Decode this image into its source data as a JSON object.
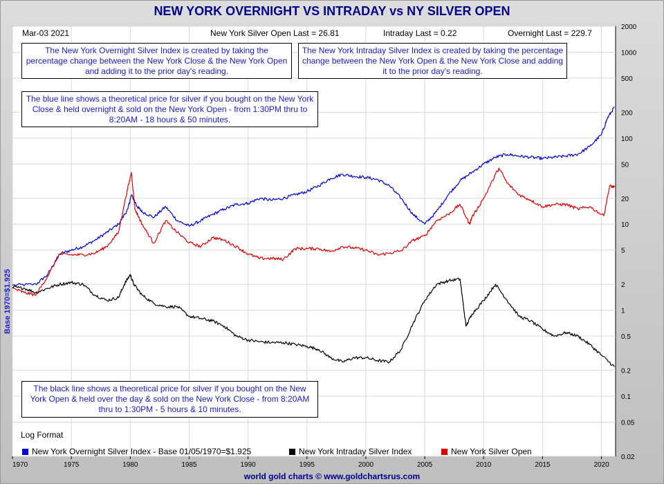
{
  "title": "NEW YORK OVERNIGHT VS INTRADAY vs NY SILVER OPEN",
  "header": {
    "date": "Mar-03  2021",
    "open_last": "New York Silver Open Last = 26.81",
    "intraday_last": "Intraday Last = 0.22",
    "overnight_last": "Overnight Last = 229.7"
  },
  "notes": {
    "overnight": "The New York Overnight Silver Index is created by taking the percentage change between the New York Close & the New York Open and adding it to the prior day's reading.",
    "intraday": "The New York Intraday Silver Index is created by taking the percentage change between the New York Open & the New York Close and adding it to the prior day's reading.",
    "blue_line": "The blue line shows a theoretical price for silver if you bought on the New York Close & held overnight & sold on the New York Open - from 1:30PM thru to 8:20AM - 18 hours & 50 minutes.",
    "black_line": "The black line shows a theoretical price for silver if you bought on the New York Open & held over the day & sold on the New York Close - from 8:20AM thru to 1:30PM - 5 hours & 10 minutes."
  },
  "log_format": "Log Format",
  "ylabel_left": "Base 1970=$1.925",
  "footer": "world gold charts © www.goldchartsrus.com",
  "legend": [
    {
      "label": "New York Overnight Silver Index - Base 01/05/1970=$1.925",
      "color": "#0000dd"
    },
    {
      "label": "New York Intraday Silver Index",
      "color": "#000000"
    },
    {
      "label": "New York Silver Open",
      "color": "#dd0000"
    }
  ],
  "chart_data": {
    "type": "line",
    "xlim": [
      1970,
      2021.2
    ],
    "ylim": [
      0.02,
      2000
    ],
    "yscale": "log",
    "grid": true,
    "legend_position": "bottom",
    "x_ticks": [
      1970,
      1975,
      1980,
      1985,
      1990,
      1995,
      2000,
      2005,
      2010,
      2015,
      2020
    ],
    "y_ticks": [
      {
        "v": 2000,
        "label": "2000"
      },
      {
        "v": 1000,
        "label": "1000"
      },
      {
        "v": 500,
        "label": "500"
      },
      {
        "v": 200,
        "label": "200"
      },
      {
        "v": 100,
        "label": "100"
      },
      {
        "v": 50,
        "label": "50"
      },
      {
        "v": 20,
        "label": "20"
      },
      {
        "v": 10,
        "label": "10"
      },
      {
        "v": 5,
        "label": "5"
      },
      {
        "v": 2,
        "label": "2"
      },
      {
        "v": 1,
        "label": "1"
      },
      {
        "v": 0.5,
        "label": "0.5"
      },
      {
        "v": 0.2,
        "label": "0.2"
      },
      {
        "v": 0.1,
        "label": "0.1"
      },
      {
        "v": 0.05,
        "label": "0.05"
      },
      {
        "v": 0.02,
        "label": "0.02"
      }
    ],
    "series": [
      {
        "name": "New York Overnight Silver Index - Base 01/05/1970=$1.925",
        "color": "#0000dd",
        "x": [
          1970,
          1972,
          1973,
          1974,
          1975,
          1976,
          1977,
          1978,
          1979,
          1979.8,
          1980.1,
          1980.6,
          1981,
          1982,
          1983,
          1984,
          1985,
          1986,
          1987,
          1988,
          1989,
          1990,
          1991,
          1992,
          1993,
          1994,
          1995,
          1996,
          1997,
          1998,
          1999,
          2000,
          2001,
          2002,
          2003,
          2004,
          2005,
          2006,
          2007,
          2008,
          2009,
          2010,
          2011,
          2012,
          2013,
          2014,
          2015,
          2016,
          2017,
          2018,
          2019,
          2020,
          2020.5,
          2021.1
        ],
        "y": [
          1.95,
          2.0,
          2.6,
          4.5,
          5.0,
          5.5,
          6.5,
          8.0,
          10.0,
          15.0,
          22.0,
          16.0,
          14.0,
          12.0,
          16.0,
          11.0,
          9.5,
          11.0,
          13.0,
          15.0,
          17.0,
          17.5,
          20.0,
          19.0,
          20.0,
          22.0,
          24.0,
          28.0,
          34.0,
          38.0,
          36.0,
          35.0,
          33.0,
          28.0,
          20.0,
          13.0,
          10.0,
          14.0,
          22.0,
          32.0,
          40.0,
          50.0,
          60.0,
          65.0,
          62.0,
          60.0,
          58.0,
          60.0,
          62.0,
          65.0,
          80.0,
          110.0,
          170.0,
          229.7
        ]
      },
      {
        "name": "New York Intraday Silver Index",
        "color": "#000000",
        "x": [
          1970,
          1971,
          1972,
          1973,
          1974,
          1975,
          1976,
          1977,
          1978,
          1979,
          1979.5,
          1980,
          1980.3,
          1981,
          1982,
          1983,
          1984,
          1985,
          1986,
          1987,
          1988,
          1989,
          1990,
          1991,
          1992,
          1993,
          1994,
          1995,
          1996,
          1997,
          1998,
          1999,
          2000,
          2001,
          2002,
          2003,
          2004,
          2005,
          2006,
          2007,
          2008,
          2008.5,
          2009,
          2010,
          2011,
          2012,
          2013,
          2014,
          2015,
          2016,
          2017,
          2018,
          2019,
          2020,
          2021.1
        ],
        "y": [
          1.85,
          1.8,
          1.6,
          1.8,
          2.0,
          2.1,
          2.0,
          1.5,
          1.3,
          1.4,
          2.0,
          2.6,
          2.0,
          1.5,
          1.2,
          1.1,
          1.1,
          0.85,
          0.8,
          0.75,
          0.65,
          0.5,
          0.45,
          0.43,
          0.42,
          0.42,
          0.4,
          0.38,
          0.35,
          0.28,
          0.25,
          0.28,
          0.28,
          0.26,
          0.25,
          0.35,
          0.7,
          1.3,
          2.0,
          2.2,
          2.3,
          0.65,
          0.9,
          1.3,
          2.0,
          1.3,
          0.85,
          0.75,
          0.6,
          0.5,
          0.55,
          0.5,
          0.4,
          0.3,
          0.22
        ]
      },
      {
        "name": "New York Silver Open",
        "color": "#dd0000",
        "x": [
          1970,
          1971,
          1972,
          1973,
          1974,
          1975,
          1976,
          1977,
          1978,
          1979,
          1979.6,
          1980.1,
          1980.4,
          1981,
          1982,
          1983,
          1984,
          1985,
          1986,
          1987,
          1988,
          1989,
          1990,
          1991,
          1992,
          1993,
          1994,
          1995,
          1996,
          1997,
          1998,
          1999,
          2000,
          2001,
          2002,
          2003,
          2004,
          2005,
          2006,
          2007,
          2008,
          2008.8,
          2009,
          2010,
          2011.3,
          2012,
          2013,
          2014,
          2015,
          2016,
          2017,
          2018,
          2019,
          2020.2,
          2020.7,
          2021.1
        ],
        "y": [
          1.8,
          1.6,
          1.5,
          2.5,
          4.5,
          4.4,
          4.4,
          4.6,
          5.5,
          8.0,
          20.0,
          40.0,
          15.0,
          10.0,
          6.0,
          11.0,
          8.0,
          6.1,
          5.5,
          7.0,
          6.5,
          5.5,
          4.5,
          4.0,
          4.0,
          3.9,
          5.2,
          5.2,
          5.2,
          4.8,
          5.5,
          5.3,
          5.0,
          4.4,
          4.6,
          4.9,
          6.5,
          7.3,
          11.0,
          13.0,
          17.0,
          10.0,
          12.0,
          20.0,
          45.0,
          30.0,
          22.0,
          19.0,
          16.0,
          17.0,
          17.0,
          15.0,
          16.0,
          12.5,
          28.0,
          26.81
        ]
      }
    ]
  }
}
